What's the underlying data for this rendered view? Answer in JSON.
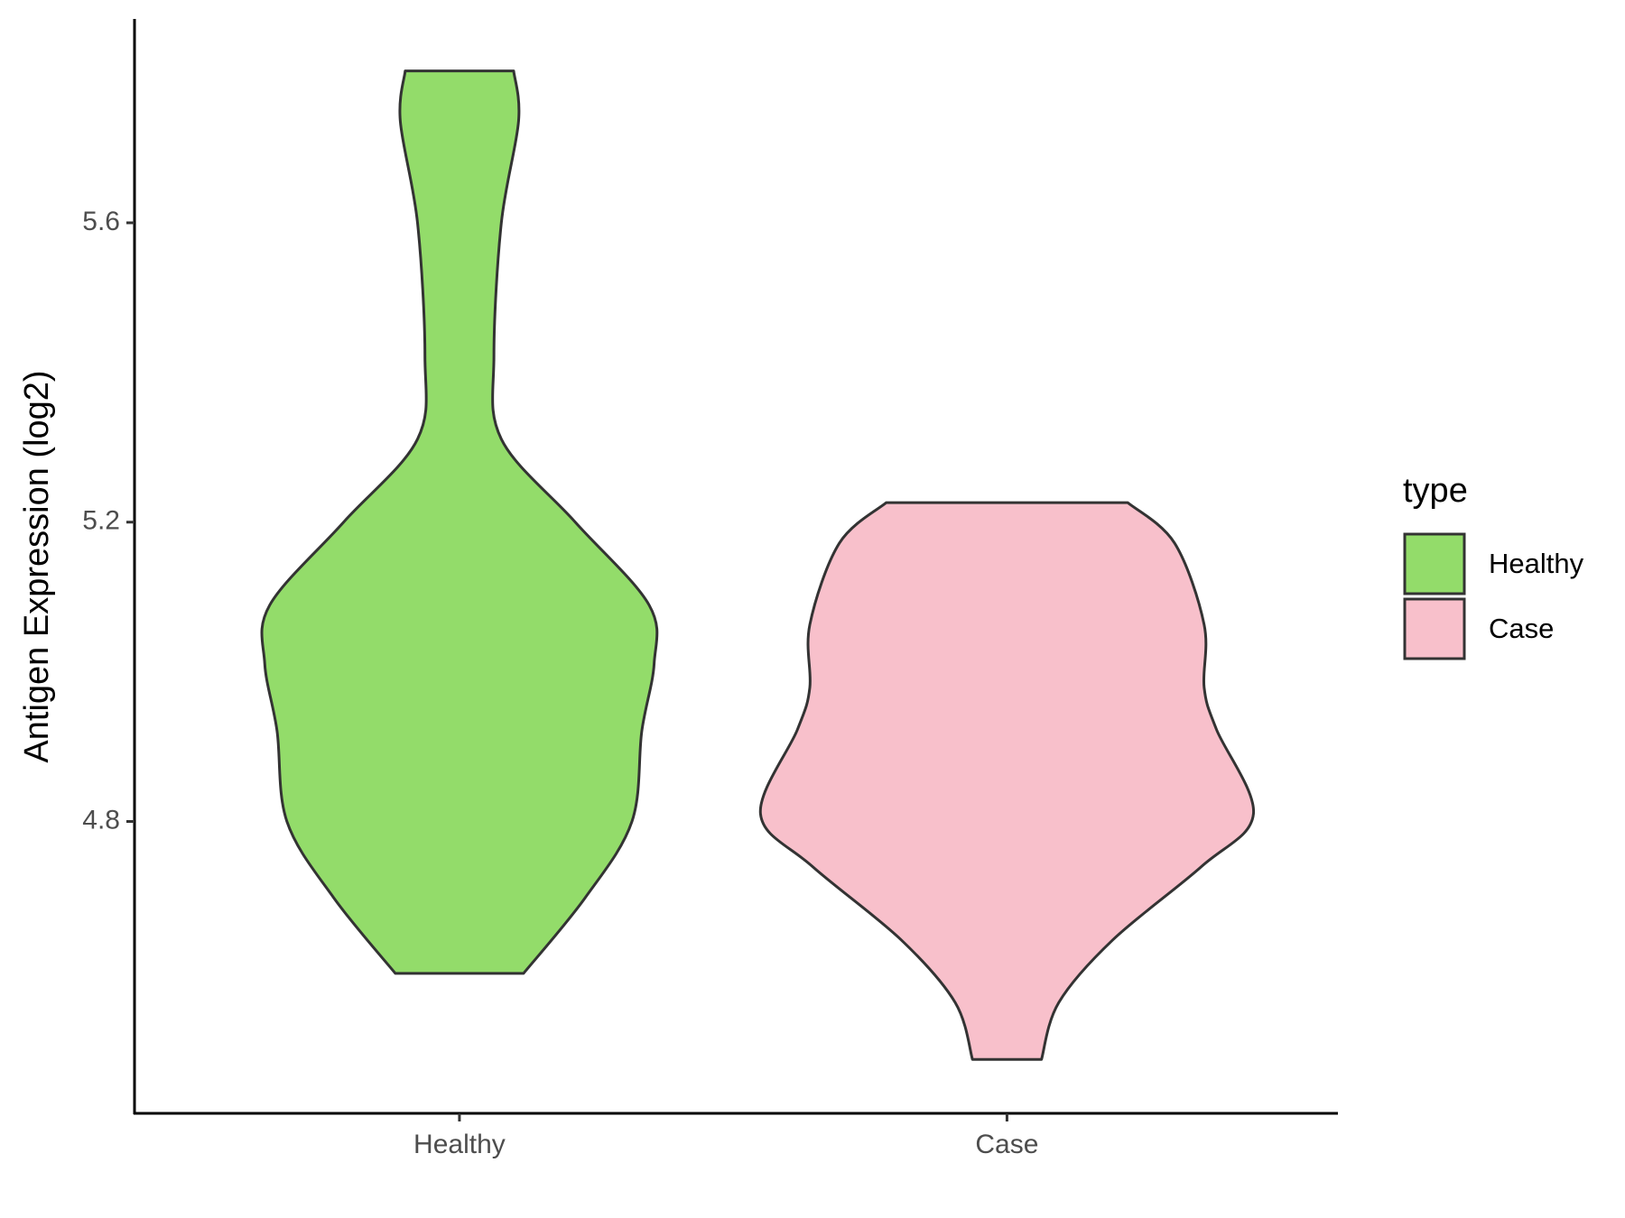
{
  "chart_data": {
    "type": "violin",
    "y_label": "Antigen Expression (log2)",
    "categories": [
      "Healthy",
      "Case"
    ],
    "legend_title": "type",
    "legend": "right",
    "ylim": [
      4.41,
      5.87
    ],
    "yticks": [
      4.8,
      5.2,
      5.6
    ],
    "series": [
      {
        "name": "Healthy",
        "color": "#93dc6a",
        "y": [
          5.803,
          5.736,
          5.6,
          5.423,
          5.311,
          5.2,
          5.089,
          5.011,
          4.921,
          4.8,
          4.698,
          4.597
        ],
        "density": [
          0.22,
          0.24,
          0.17,
          0.14,
          0.17,
          0.47,
          0.77,
          0.79,
          0.74,
          0.7,
          0.51,
          0.26
        ]
      },
      {
        "name": "Case",
        "color": "#f8c0cb",
        "y": [
          5.226,
          5.172,
          5.063,
          4.979,
          4.923,
          4.81,
          4.74,
          4.642,
          4.558,
          4.482
        ],
        "density": [
          0.49,
          0.68,
          0.8,
          0.8,
          0.85,
          1.0,
          0.79,
          0.43,
          0.21,
          0.14
        ]
      }
    ]
  }
}
